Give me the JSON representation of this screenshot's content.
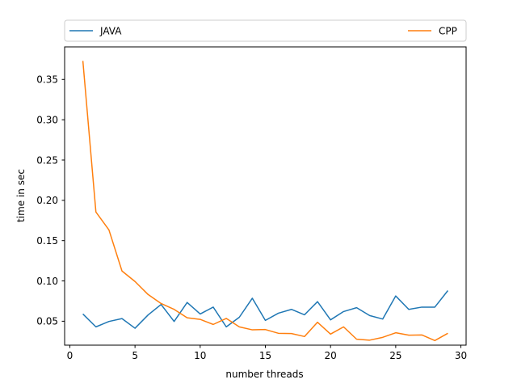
{
  "chart_data": {
    "type": "line",
    "title": "",
    "xlabel": "number threads",
    "ylabel": "time in sec",
    "xlim": [
      -0.4,
      30.4
    ],
    "ylim": [
      0.0203,
      0.3904
    ],
    "x_ticks": [
      0,
      5,
      10,
      15,
      20,
      25,
      30
    ],
    "x_tick_labels": [
      "0",
      "5",
      "10",
      "15",
      "20",
      "25",
      "30"
    ],
    "y_ticks": [
      0.05,
      0.1,
      0.15,
      0.2,
      0.25,
      0.3,
      0.35
    ],
    "y_tick_labels": [
      "0.05",
      "0.10",
      "0.15",
      "0.20",
      "0.25",
      "0.30",
      "0.35"
    ],
    "grid": false,
    "legend_position": "top, spanning full width above plot",
    "x": [
      1,
      2,
      3,
      4,
      5,
      6,
      7,
      8,
      9,
      10,
      11,
      12,
      13,
      14,
      15,
      16,
      17,
      18,
      19,
      20,
      21,
      22,
      23,
      24,
      25,
      26,
      27,
      28,
      29
    ],
    "series": [
      {
        "name": "JAVA",
        "color": "#1f77b4",
        "values": [
          0.059,
          0.043,
          0.0497,
          0.0533,
          0.0413,
          0.0577,
          0.0708,
          0.0497,
          0.0733,
          0.059,
          0.0675,
          0.043,
          0.0549,
          0.0785,
          0.051,
          0.06,
          0.0647,
          0.058,
          0.0743,
          0.0517,
          0.062,
          0.0668,
          0.057,
          0.0527,
          0.0813,
          0.0647,
          0.0675,
          0.0675,
          0.088
        ]
      },
      {
        "name": "CPP",
        "color": "#ff7f0e",
        "values": [
          0.373,
          0.1855,
          0.1633,
          0.1123,
          0.0993,
          0.0832,
          0.072,
          0.0647,
          0.0543,
          0.0523,
          0.046,
          0.0535,
          0.043,
          0.0393,
          0.0397,
          0.035,
          0.0347,
          0.031,
          0.0487,
          0.034,
          0.043,
          0.0277,
          0.0265,
          0.03,
          0.0357,
          0.0327,
          0.033,
          0.026,
          0.035
        ]
      }
    ]
  }
}
